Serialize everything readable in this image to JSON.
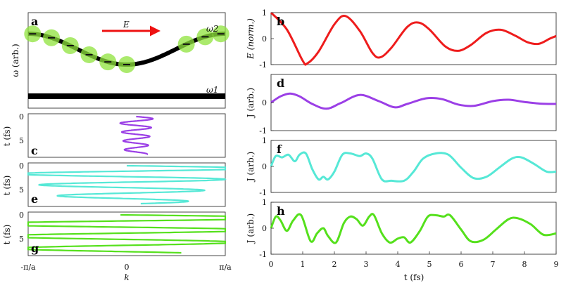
{
  "chart_data": [
    {
      "panel": "a",
      "type": "line",
      "ylabel": "ω (arb.)",
      "annotations": {
        "field": "E",
        "upper_band": "ω2",
        "lower_band": "ω1"
      },
      "colors": {
        "band": "#000000",
        "dots": "#8fe33c",
        "arrow": "#ee1111"
      },
      "x_range": [
        -3.1416,
        3.1416
      ],
      "upper_band": {
        "x_range": [
          -3.1416,
          3.1416
        ],
        "min": 0.0,
        "max": 1.0
      },
      "lower_band_level": -1.2,
      "dot_k": [
        -3.0,
        -2.4,
        -1.8,
        -1.2,
        -0.6,
        0.0,
        1.9,
        2.5,
        3.0
      ]
    },
    {
      "panel": "c",
      "type": "line",
      "ylabel": "t (fs)",
      "yticks": [
        "0",
        "5"
      ],
      "ylim": [
        0,
        9
      ],
      "xlim": [
        -3.1416,
        3.1416
      ],
      "color": "#9b3fe6",
      "amplitude": 0.55,
      "period": 2.1,
      "offset": 0.3
    },
    {
      "panel": "e",
      "type": "line",
      "ylabel": "t (fs)",
      "yticks": [
        "0",
        "5"
      ],
      "ylim": [
        0,
        9
      ],
      "xlim": [
        -3.1416,
        3.1416
      ],
      "color": "#56e8d6",
      "amplitude": 4.2,
      "period": 2.6,
      "offset": 0.0
    },
    {
      "panel": "g",
      "type": "line",
      "ylabel": "t (fs)",
      "yticks": [
        "0",
        "5"
      ],
      "ylim": [
        0,
        9
      ],
      "xlim": [
        -3.1416,
        3.1416
      ],
      "xlabel": "k",
      "xtick_labels": [
        "-π/a",
        "0",
        "π/a"
      ],
      "color": "#55e01c",
      "amplitude": 5.5,
      "period": 2.9,
      "offset": -0.2
    },
    {
      "panel": "b",
      "type": "line",
      "ylabel": "E (norm.)",
      "yticks": [
        "1",
        "0",
        "-1"
      ],
      "ylim": [
        -1,
        1
      ],
      "xlim": [
        0,
        9
      ],
      "color": "#ee1c1c",
      "points": [
        [
          0,
          1.0
        ],
        [
          0.5,
          0.35
        ],
        [
          1.0,
          -0.85
        ],
        [
          1.15,
          -0.95
        ],
        [
          1.5,
          -0.5
        ],
        [
          2.0,
          0.55
        ],
        [
          2.35,
          0.87
        ],
        [
          2.8,
          0.3
        ],
        [
          3.2,
          -0.55
        ],
        [
          3.45,
          -0.72
        ],
        [
          3.8,
          -0.35
        ],
        [
          4.3,
          0.45
        ],
        [
          4.65,
          0.62
        ],
        [
          5.0,
          0.35
        ],
        [
          5.5,
          -0.3
        ],
        [
          5.9,
          -0.47
        ],
        [
          6.3,
          -0.25
        ],
        [
          6.8,
          0.22
        ],
        [
          7.25,
          0.34
        ],
        [
          7.7,
          0.12
        ],
        [
          8.1,
          -0.14
        ],
        [
          8.45,
          -0.2
        ],
        [
          8.8,
          0.0
        ],
        [
          9.0,
          0.1
        ]
      ]
    },
    {
      "panel": "d",
      "type": "line",
      "ylabel": "J (arb.)",
      "yticks": [
        "0",
        "-1"
      ],
      "ylim": [
        -1,
        1
      ],
      "xlim": [
        0,
        9
      ],
      "color": "#9b3fe6",
      "points": [
        [
          0,
          0.0
        ],
        [
          0.3,
          0.22
        ],
        [
          0.6,
          0.32
        ],
        [
          0.9,
          0.22
        ],
        [
          1.3,
          -0.05
        ],
        [
          1.75,
          -0.22
        ],
        [
          2.2,
          -0.02
        ],
        [
          2.8,
          0.27
        ],
        [
          3.4,
          0.05
        ],
        [
          3.9,
          -0.17
        ],
        [
          4.3,
          -0.05
        ],
        [
          4.9,
          0.15
        ],
        [
          5.4,
          0.12
        ],
        [
          5.9,
          -0.07
        ],
        [
          6.4,
          -0.12
        ],
        [
          7.0,
          0.05
        ],
        [
          7.5,
          0.1
        ],
        [
          8.0,
          0.02
        ],
        [
          8.5,
          -0.04
        ],
        [
          9.0,
          -0.05
        ]
      ]
    },
    {
      "panel": "f",
      "type": "line",
      "ylabel": "J (arb.)",
      "yticks": [
        "1",
        "0",
        "-1"
      ],
      "ylim": [
        -1,
        1
      ],
      "xlim": [
        0,
        9
      ],
      "color": "#56e8d6",
      "points": [
        [
          0,
          0.0
        ],
        [
          0.15,
          0.4
        ],
        [
          0.35,
          0.35
        ],
        [
          0.55,
          0.45
        ],
        [
          0.75,
          0.2
        ],
        [
          0.9,
          0.45
        ],
        [
          1.1,
          0.5
        ],
        [
          1.3,
          -0.1
        ],
        [
          1.5,
          -0.5
        ],
        [
          1.65,
          -0.4
        ],
        [
          1.8,
          -0.5
        ],
        [
          2.0,
          -0.2
        ],
        [
          2.25,
          0.45
        ],
        [
          2.5,
          0.5
        ],
        [
          2.8,
          0.4
        ],
        [
          3.0,
          0.5
        ],
        [
          3.2,
          0.3
        ],
        [
          3.5,
          -0.5
        ],
        [
          3.8,
          -0.55
        ],
        [
          4.2,
          -0.55
        ],
        [
          4.5,
          -0.2
        ],
        [
          4.8,
          0.3
        ],
        [
          5.2,
          0.5
        ],
        [
          5.6,
          0.45
        ],
        [
          6.0,
          -0.05
        ],
        [
          6.4,
          -0.45
        ],
        [
          6.8,
          -0.4
        ],
        [
          7.2,
          -0.05
        ],
        [
          7.6,
          0.3
        ],
        [
          7.9,
          0.35
        ],
        [
          8.3,
          0.1
        ],
        [
          8.7,
          -0.2
        ],
        [
          9.0,
          -0.2
        ]
      ]
    },
    {
      "panel": "h",
      "type": "line",
      "ylabel": "J (arb.)",
      "yticks": [
        "1",
        "0",
        "-1"
      ],
      "ylim": [
        -1,
        1
      ],
      "xlim": [
        0,
        9
      ],
      "xlabel": "t (fs)",
      "xtick_labels": [
        "0",
        "1",
        "2",
        "3",
        "4",
        "5",
        "6",
        "7",
        "8",
        "9"
      ],
      "color": "#55e01c",
      "points": [
        [
          0,
          0.0
        ],
        [
          0.15,
          0.45
        ],
        [
          0.3,
          0.3
        ],
        [
          0.5,
          -0.1
        ],
        [
          0.7,
          0.3
        ],
        [
          0.95,
          0.5
        ],
        [
          1.25,
          -0.5
        ],
        [
          1.45,
          -0.2
        ],
        [
          1.65,
          0.0
        ],
        [
          1.8,
          -0.3
        ],
        [
          2.05,
          -0.55
        ],
        [
          2.3,
          0.2
        ],
        [
          2.5,
          0.45
        ],
        [
          2.7,
          0.35
        ],
        [
          2.9,
          0.1
        ],
        [
          3.1,
          0.45
        ],
        [
          3.25,
          0.5
        ],
        [
          3.5,
          -0.2
        ],
        [
          3.75,
          -0.55
        ],
        [
          4.0,
          -0.4
        ],
        [
          4.2,
          -0.35
        ],
        [
          4.4,
          -0.55
        ],
        [
          4.7,
          -0.1
        ],
        [
          4.95,
          0.45
        ],
        [
          5.2,
          0.5
        ],
        [
          5.45,
          0.45
        ],
        [
          5.65,
          0.5
        ],
        [
          6.0,
          -0.05
        ],
        [
          6.3,
          -0.5
        ],
        [
          6.7,
          -0.45
        ],
        [
          7.1,
          -0.05
        ],
        [
          7.5,
          0.35
        ],
        [
          7.8,
          0.38
        ],
        [
          8.2,
          0.15
        ],
        [
          8.6,
          -0.25
        ],
        [
          9.0,
          -0.2
        ]
      ]
    }
  ]
}
